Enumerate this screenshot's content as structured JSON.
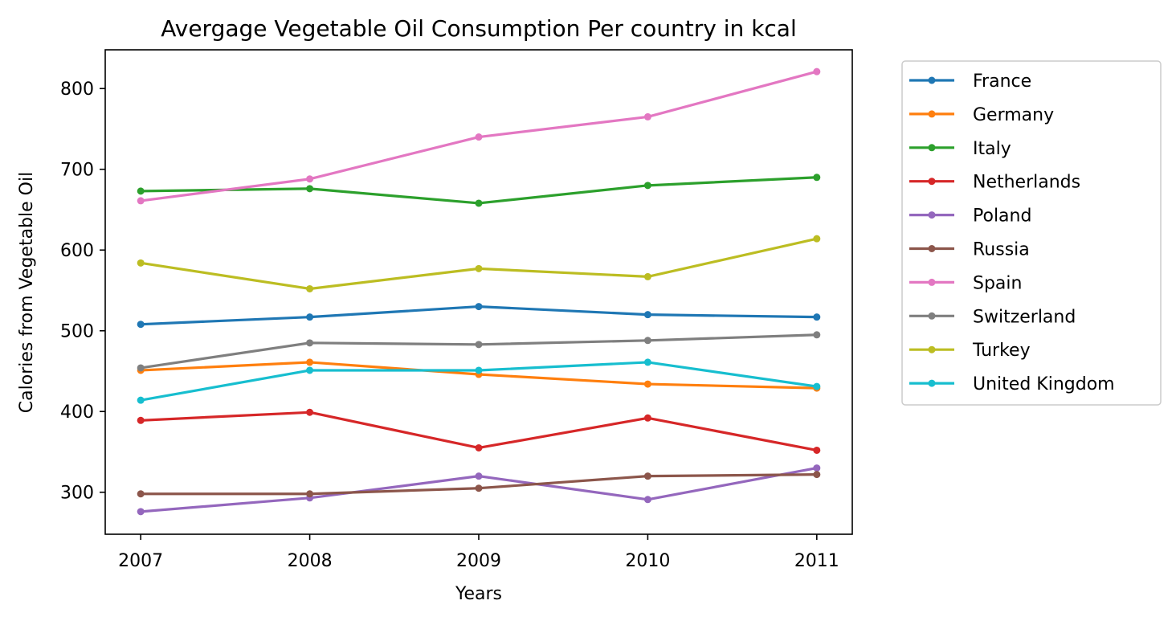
{
  "chart_data": {
    "type": "line",
    "title": "Avergage Vegetable Oil Consumption Per country in kcal",
    "xlabel": "Years",
    "ylabel": "Calories from Vegetable Oil",
    "x": [
      "2007",
      "2008",
      "2009",
      "2010",
      "2011"
    ],
    "xlim": [
      2006.79,
      2011.21
    ],
    "ylim": [
      248,
      848
    ],
    "yticks": [
      "300",
      "400",
      "500",
      "600",
      "700",
      "800"
    ],
    "legend_position": "outside-right",
    "grid": false,
    "series": [
      {
        "name": "France",
        "color": "#1f77b4",
        "values": [
          508,
          517,
          530,
          520,
          517
        ]
      },
      {
        "name": "Germany",
        "color": "#ff7f0e",
        "values": [
          451,
          461,
          446,
          434,
          429
        ]
      },
      {
        "name": "Italy",
        "color": "#2ca02c",
        "values": [
          673,
          676,
          658,
          680,
          690
        ]
      },
      {
        "name": "Netherlands",
        "color": "#d62728",
        "values": [
          389,
          399,
          355,
          392,
          352
        ]
      },
      {
        "name": "Poland",
        "color": "#9467bd",
        "values": [
          276,
          293,
          320,
          291,
          330
        ]
      },
      {
        "name": "Russia",
        "color": "#8c564b",
        "values": [
          298,
          298,
          305,
          320,
          322
        ]
      },
      {
        "name": "Spain",
        "color": "#e377c2",
        "values": [
          661,
          688,
          740,
          765,
          821
        ]
      },
      {
        "name": "Switzerland",
        "color": "#7f7f7f",
        "values": [
          454,
          485,
          483,
          488,
          495
        ]
      },
      {
        "name": "Turkey",
        "color": "#bcbd22",
        "values": [
          584,
          552,
          577,
          567,
          614
        ]
      },
      {
        "name": "United Kingdom",
        "color": "#17becf",
        "values": [
          414,
          451,
          451,
          461,
          431
        ]
      }
    ]
  }
}
